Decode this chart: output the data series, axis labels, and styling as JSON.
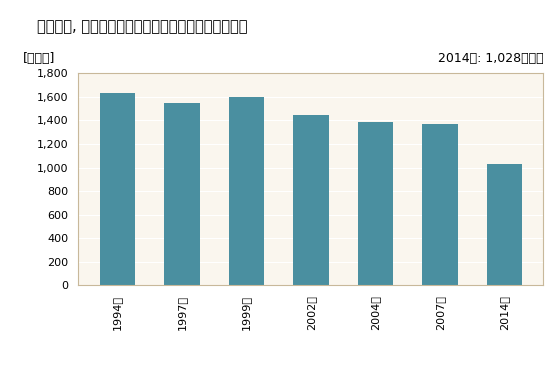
{
  "title": "建築材料, 鉱物･金属材料等卸売業の事業所数の推移",
  "ylabel": "[事業所]",
  "annotation": "2014年: 1,028事業所",
  "categories": [
    "1994年",
    "1997年",
    "1999年",
    "2002年",
    "2004年",
    "2007年",
    "2014年"
  ],
  "values": [
    1630,
    1549,
    1600,
    1447,
    1383,
    1373,
    1028
  ],
  "bar_color": "#4a8fa0",
  "ylim": [
    0,
    1800
  ],
  "yticks": [
    0,
    200,
    400,
    600,
    800,
    1000,
    1200,
    1400,
    1600,
    1800
  ],
  "background_color": "#ffffff",
  "plot_bg_color": "#faf6ee",
  "title_fontsize": 10.5,
  "label_fontsize": 9,
  "tick_fontsize": 8,
  "annotation_fontsize": 9
}
